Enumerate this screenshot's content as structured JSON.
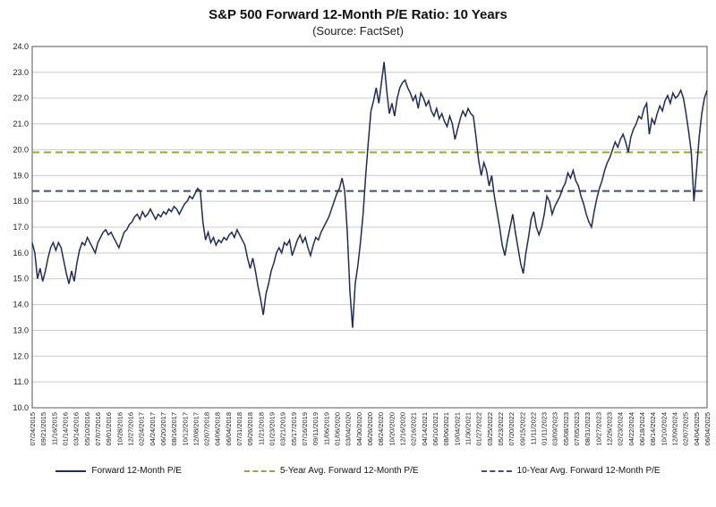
{
  "title": "S&P 500 Forward 12-Month P/E Ratio: 10 Years",
  "subtitle": "(Source: FactSet)",
  "chart_data": {
    "type": "line",
    "title": "S&P 500 Forward 12-Month P/E Ratio: 10 Years",
    "subtitle": "(Source: FactSet)",
    "xlabel": "",
    "ylabel": "",
    "ylim": [
      10.0,
      24.0
    ],
    "ytick_step": 1.0,
    "grid": true,
    "grid_color": "#c9c9c9",
    "axis_color": "#555555",
    "text_color": "#1a1a1a",
    "legend_position": "bottom",
    "x_labels": [
      "07/24/2015",
      "09/21/2015",
      "11/16/2015",
      "01/14/2016",
      "03/14/2016",
      "05/10/2016",
      "07/07/2016",
      "09/01/2016",
      "10/28/2016",
      "12/27/2016",
      "02/24/2017",
      "04/24/2017",
      "06/20/2017",
      "08/16/2017",
      "10/12/2017",
      "12/08/2017",
      "02/07/2018",
      "04/06/2018",
      "06/04/2018",
      "07/31/2018",
      "09/26/2018",
      "11/21/2018",
      "01/23/2019",
      "03/21/2019",
      "05/17/2019",
      "07/16/2019",
      "09/11/2019",
      "11/06/2019",
      "01/06/2020",
      "03/04/2020",
      "04/30/2020",
      "06/26/2020",
      "08/24/2020",
      "10/20/2020",
      "12/16/2020",
      "02/16/2021",
      "04/14/2021",
      "06/10/2021",
      "08/06/2021",
      "10/04/2021",
      "11/30/2021",
      "01/27/2022",
      "03/25/2022",
      "05/23/2022",
      "07/20/2022",
      "09/15/2022",
      "11/11/2022",
      "01/11/2023",
      "03/09/2023",
      "05/08/2023",
      "07/05/2023",
      "08/31/2023",
      "10/27/2023",
      "12/26/2023",
      "02/23/2024",
      "04/22/2024",
      "06/18/2024",
      "08/14/2024",
      "10/10/2024",
      "12/09/2024",
      "02/07/2025",
      "04/04/2025",
      "06/04/2025"
    ],
    "series": [
      {
        "name": "Forward 12-Month P/E",
        "color": "#1f2c56",
        "style": "solid",
        "values": [
          16.4,
          16.0,
          15.0,
          15.4,
          14.9,
          15.3,
          15.8,
          16.2,
          16.4,
          16.1,
          16.4,
          16.2,
          15.7,
          15.2,
          14.8,
          15.3,
          14.9,
          15.6,
          16.1,
          16.4,
          16.3,
          16.6,
          16.4,
          16.2,
          16.0,
          16.4,
          16.6,
          16.8,
          16.9,
          16.7,
          16.8,
          16.6,
          16.4,
          16.2,
          16.5,
          16.8,
          16.9,
          17.1,
          17.2,
          17.4,
          17.5,
          17.3,
          17.6,
          17.4,
          17.5,
          17.7,
          17.5,
          17.3,
          17.5,
          17.4,
          17.6,
          17.5,
          17.7,
          17.6,
          17.8,
          17.7,
          17.5,
          17.7,
          17.9,
          18.0,
          18.2,
          18.1,
          18.3,
          18.5,
          18.4,
          17.2,
          16.5,
          16.8,
          16.4,
          16.6,
          16.3,
          16.5,
          16.4,
          16.6,
          16.5,
          16.7,
          16.8,
          16.6,
          16.9,
          16.7,
          16.5,
          16.3,
          15.8,
          15.4,
          15.8,
          15.3,
          14.7,
          14.2,
          13.6,
          14.4,
          14.8,
          15.3,
          15.6,
          16.0,
          16.2,
          16.0,
          16.4,
          16.3,
          16.5,
          15.9,
          16.2,
          16.5,
          16.7,
          16.4,
          16.6,
          16.2,
          15.9,
          16.3,
          16.6,
          16.5,
          16.8,
          17.0,
          17.2,
          17.4,
          17.7,
          18.0,
          18.3,
          18.5,
          18.9,
          18.4,
          16.8,
          14.5,
          13.1,
          14.8,
          15.5,
          16.4,
          17.5,
          19.0,
          20.3,
          21.5,
          21.9,
          22.4,
          21.8,
          22.6,
          23.4,
          22.3,
          21.4,
          21.8,
          21.3,
          22.0,
          22.4,
          22.6,
          22.7,
          22.4,
          22.2,
          21.9,
          22.1,
          21.6,
          22.2,
          22.0,
          21.7,
          21.9,
          21.5,
          21.3,
          21.6,
          21.2,
          21.4,
          21.1,
          20.9,
          21.3,
          21.0,
          20.4,
          20.8,
          21.2,
          21.5,
          21.3,
          21.6,
          21.4,
          21.3,
          20.5,
          19.6,
          19.0,
          19.5,
          19.2,
          18.6,
          19.0,
          18.2,
          17.6,
          17.0,
          16.3,
          15.9,
          16.5,
          17.0,
          17.5,
          16.8,
          16.2,
          15.6,
          15.2,
          16.0,
          16.6,
          17.3,
          17.6,
          17.0,
          16.7,
          17.0,
          17.5,
          18.2,
          18.0,
          17.5,
          17.8,
          18.0,
          18.2,
          18.5,
          18.7,
          19.1,
          18.9,
          19.2,
          18.8,
          18.6,
          18.2,
          17.9,
          17.5,
          17.2,
          17.0,
          17.6,
          18.1,
          18.5,
          18.8,
          19.2,
          19.5,
          19.7,
          20.0,
          20.3,
          20.1,
          20.4,
          20.6,
          20.3,
          19.9,
          20.5,
          20.8,
          21.0,
          21.3,
          21.2,
          21.6,
          21.8,
          20.6,
          21.2,
          21.0,
          21.4,
          21.7,
          21.5,
          21.9,
          22.1,
          21.8,
          22.2,
          22.0,
          22.1,
          22.3,
          22.0,
          21.4,
          20.7,
          19.9,
          18.0,
          19.2,
          20.5,
          21.4,
          22.0,
          22.3
        ]
      },
      {
        "name": "5-Year Avg. Forward 12-Month P/E",
        "color": "#97a83e",
        "style": "dashed",
        "value": 19.9
      },
      {
        "name": "10-Year Avg. Forward 12-Month P/E",
        "color": "#3f4e7c",
        "style": "dashed",
        "value": 18.4
      }
    ]
  }
}
